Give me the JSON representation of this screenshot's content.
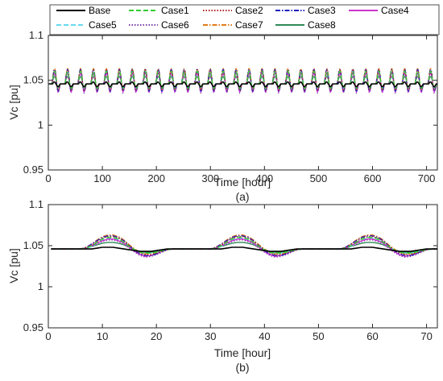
{
  "legend": {
    "entries": [
      {
        "name": "Base",
        "color": "#000000",
        "dash": "solid"
      },
      {
        "name": "Case1",
        "color": "#33cc33",
        "dash": "dash"
      },
      {
        "name": "Case2",
        "color": "#b22222",
        "dash": "dot"
      },
      {
        "name": "Case3",
        "color": "#1f1fbf",
        "dash": "dashdot"
      },
      {
        "name": "Case4",
        "color": "#cc33cc",
        "dash": "solid"
      },
      {
        "name": "Case5",
        "color": "#66d9f2",
        "dash": "dash"
      },
      {
        "name": "Case6",
        "color": "#7b3fa8",
        "dash": "dot"
      },
      {
        "name": "Case7",
        "color": "#e07b1a",
        "dash": "dashdot"
      },
      {
        "name": "Case8",
        "color": "#2e8b57",
        "dash": "solid"
      }
    ],
    "placement": "top"
  },
  "chart_data": [
    {
      "type": "line",
      "caption": "(a)",
      "xlabel": "Time [hour]",
      "ylabel": "Vc [pu]",
      "xlim": [
        0,
        720
      ],
      "ylim": [
        0.95,
        1.1
      ],
      "xticks": [
        0,
        100,
        200,
        300,
        400,
        500,
        600,
        700
      ],
      "yticks": [
        0.95,
        1,
        1.05,
        1.1
      ],
      "ytick_labels": [
        "0.95",
        "1",
        "1.05",
        "1.1"
      ],
      "grid": false,
      "series_summary": {
        "period_hours": 24,
        "days": 30,
        "Base": {
          "min": 1.043,
          "max": 1.049
        },
        "Cases": {
          "min": 1.033,
          "max": 1.063
        }
      }
    },
    {
      "type": "line",
      "caption": "(b)",
      "xlabel": "Time [hour]",
      "ylabel": "Vc [pu]",
      "xlim": [
        0,
        72
      ],
      "ylim": [
        0.95,
        1.1
      ],
      "xticks": [
        0,
        10,
        20,
        30,
        40,
        50,
        60,
        70
      ],
      "yticks": [
        0.95,
        1,
        1.05,
        1.1
      ],
      "ytick_labels": [
        "0.95",
        "1",
        "1.05",
        "1.1"
      ],
      "grid": false,
      "x": [
        1,
        2,
        3,
        4,
        5,
        6,
        7,
        8,
        9,
        10,
        11,
        12,
        13,
        14,
        15,
        16,
        17,
        18,
        19,
        20,
        21,
        22,
        23,
        24
      ],
      "series": [
        {
          "name": "Base",
          "values": [
            1.046,
            1.046,
            1.046,
            1.046,
            1.046,
            1.046,
            1.046,
            1.046,
            1.047,
            1.048,
            1.048,
            1.048,
            1.047,
            1.046,
            1.045,
            1.044,
            1.043,
            1.043,
            1.043,
            1.044,
            1.045,
            1.046,
            1.046,
            1.046
          ]
        },
        {
          "name": "Case1",
          "values": [
            1.046,
            1.046,
            1.046,
            1.046,
            1.046,
            1.046,
            1.047,
            1.05,
            1.054,
            1.058,
            1.06,
            1.06,
            1.058,
            1.054,
            1.049,
            1.045,
            1.042,
            1.041,
            1.041,
            1.042,
            1.044,
            1.045,
            1.046,
            1.046
          ]
        },
        {
          "name": "Case2",
          "values": [
            1.046,
            1.046,
            1.046,
            1.046,
            1.046,
            1.046,
            1.048,
            1.051,
            1.055,
            1.059,
            1.061,
            1.061,
            1.059,
            1.055,
            1.05,
            1.045,
            1.041,
            1.039,
            1.039,
            1.041,
            1.043,
            1.045,
            1.046,
            1.046
          ]
        },
        {
          "name": "Case3",
          "values": [
            1.046,
            1.046,
            1.046,
            1.046,
            1.046,
            1.046,
            1.048,
            1.052,
            1.056,
            1.06,
            1.062,
            1.062,
            1.06,
            1.056,
            1.05,
            1.044,
            1.04,
            1.038,
            1.038,
            1.04,
            1.043,
            1.045,
            1.046,
            1.046
          ]
        },
        {
          "name": "Case4",
          "values": [
            1.046,
            1.046,
            1.046,
            1.046,
            1.046,
            1.046,
            1.047,
            1.05,
            1.053,
            1.056,
            1.058,
            1.058,
            1.056,
            1.053,
            1.048,
            1.043,
            1.039,
            1.037,
            1.038,
            1.04,
            1.043,
            1.045,
            1.046,
            1.046
          ]
        },
        {
          "name": "Case5",
          "values": [
            1.046,
            1.046,
            1.046,
            1.046,
            1.046,
            1.046,
            1.047,
            1.049,
            1.053,
            1.057,
            1.059,
            1.059,
            1.057,
            1.053,
            1.049,
            1.045,
            1.042,
            1.041,
            1.041,
            1.042,
            1.044,
            1.045,
            1.046,
            1.046
          ]
        },
        {
          "name": "Case6",
          "values": [
            1.046,
            1.046,
            1.046,
            1.046,
            1.046,
            1.046,
            1.047,
            1.049,
            1.052,
            1.055,
            1.057,
            1.057,
            1.055,
            1.052,
            1.047,
            1.042,
            1.038,
            1.036,
            1.037,
            1.039,
            1.042,
            1.045,
            1.046,
            1.046
          ]
        },
        {
          "name": "Case7",
          "values": [
            1.046,
            1.046,
            1.046,
            1.046,
            1.046,
            1.046,
            1.048,
            1.052,
            1.057,
            1.061,
            1.063,
            1.063,
            1.061,
            1.057,
            1.051,
            1.046,
            1.042,
            1.04,
            1.04,
            1.041,
            1.043,
            1.045,
            1.046,
            1.046
          ]
        },
        {
          "name": "Case8",
          "values": [
            1.046,
            1.046,
            1.046,
            1.046,
            1.046,
            1.046,
            1.047,
            1.049,
            1.051,
            1.053,
            1.054,
            1.054,
            1.053,
            1.051,
            1.048,
            1.045,
            1.043,
            1.042,
            1.042,
            1.043,
            1.044,
            1.045,
            1.046,
            1.046
          ]
        }
      ],
      "pattern_repeats_days": 3
    }
  ]
}
